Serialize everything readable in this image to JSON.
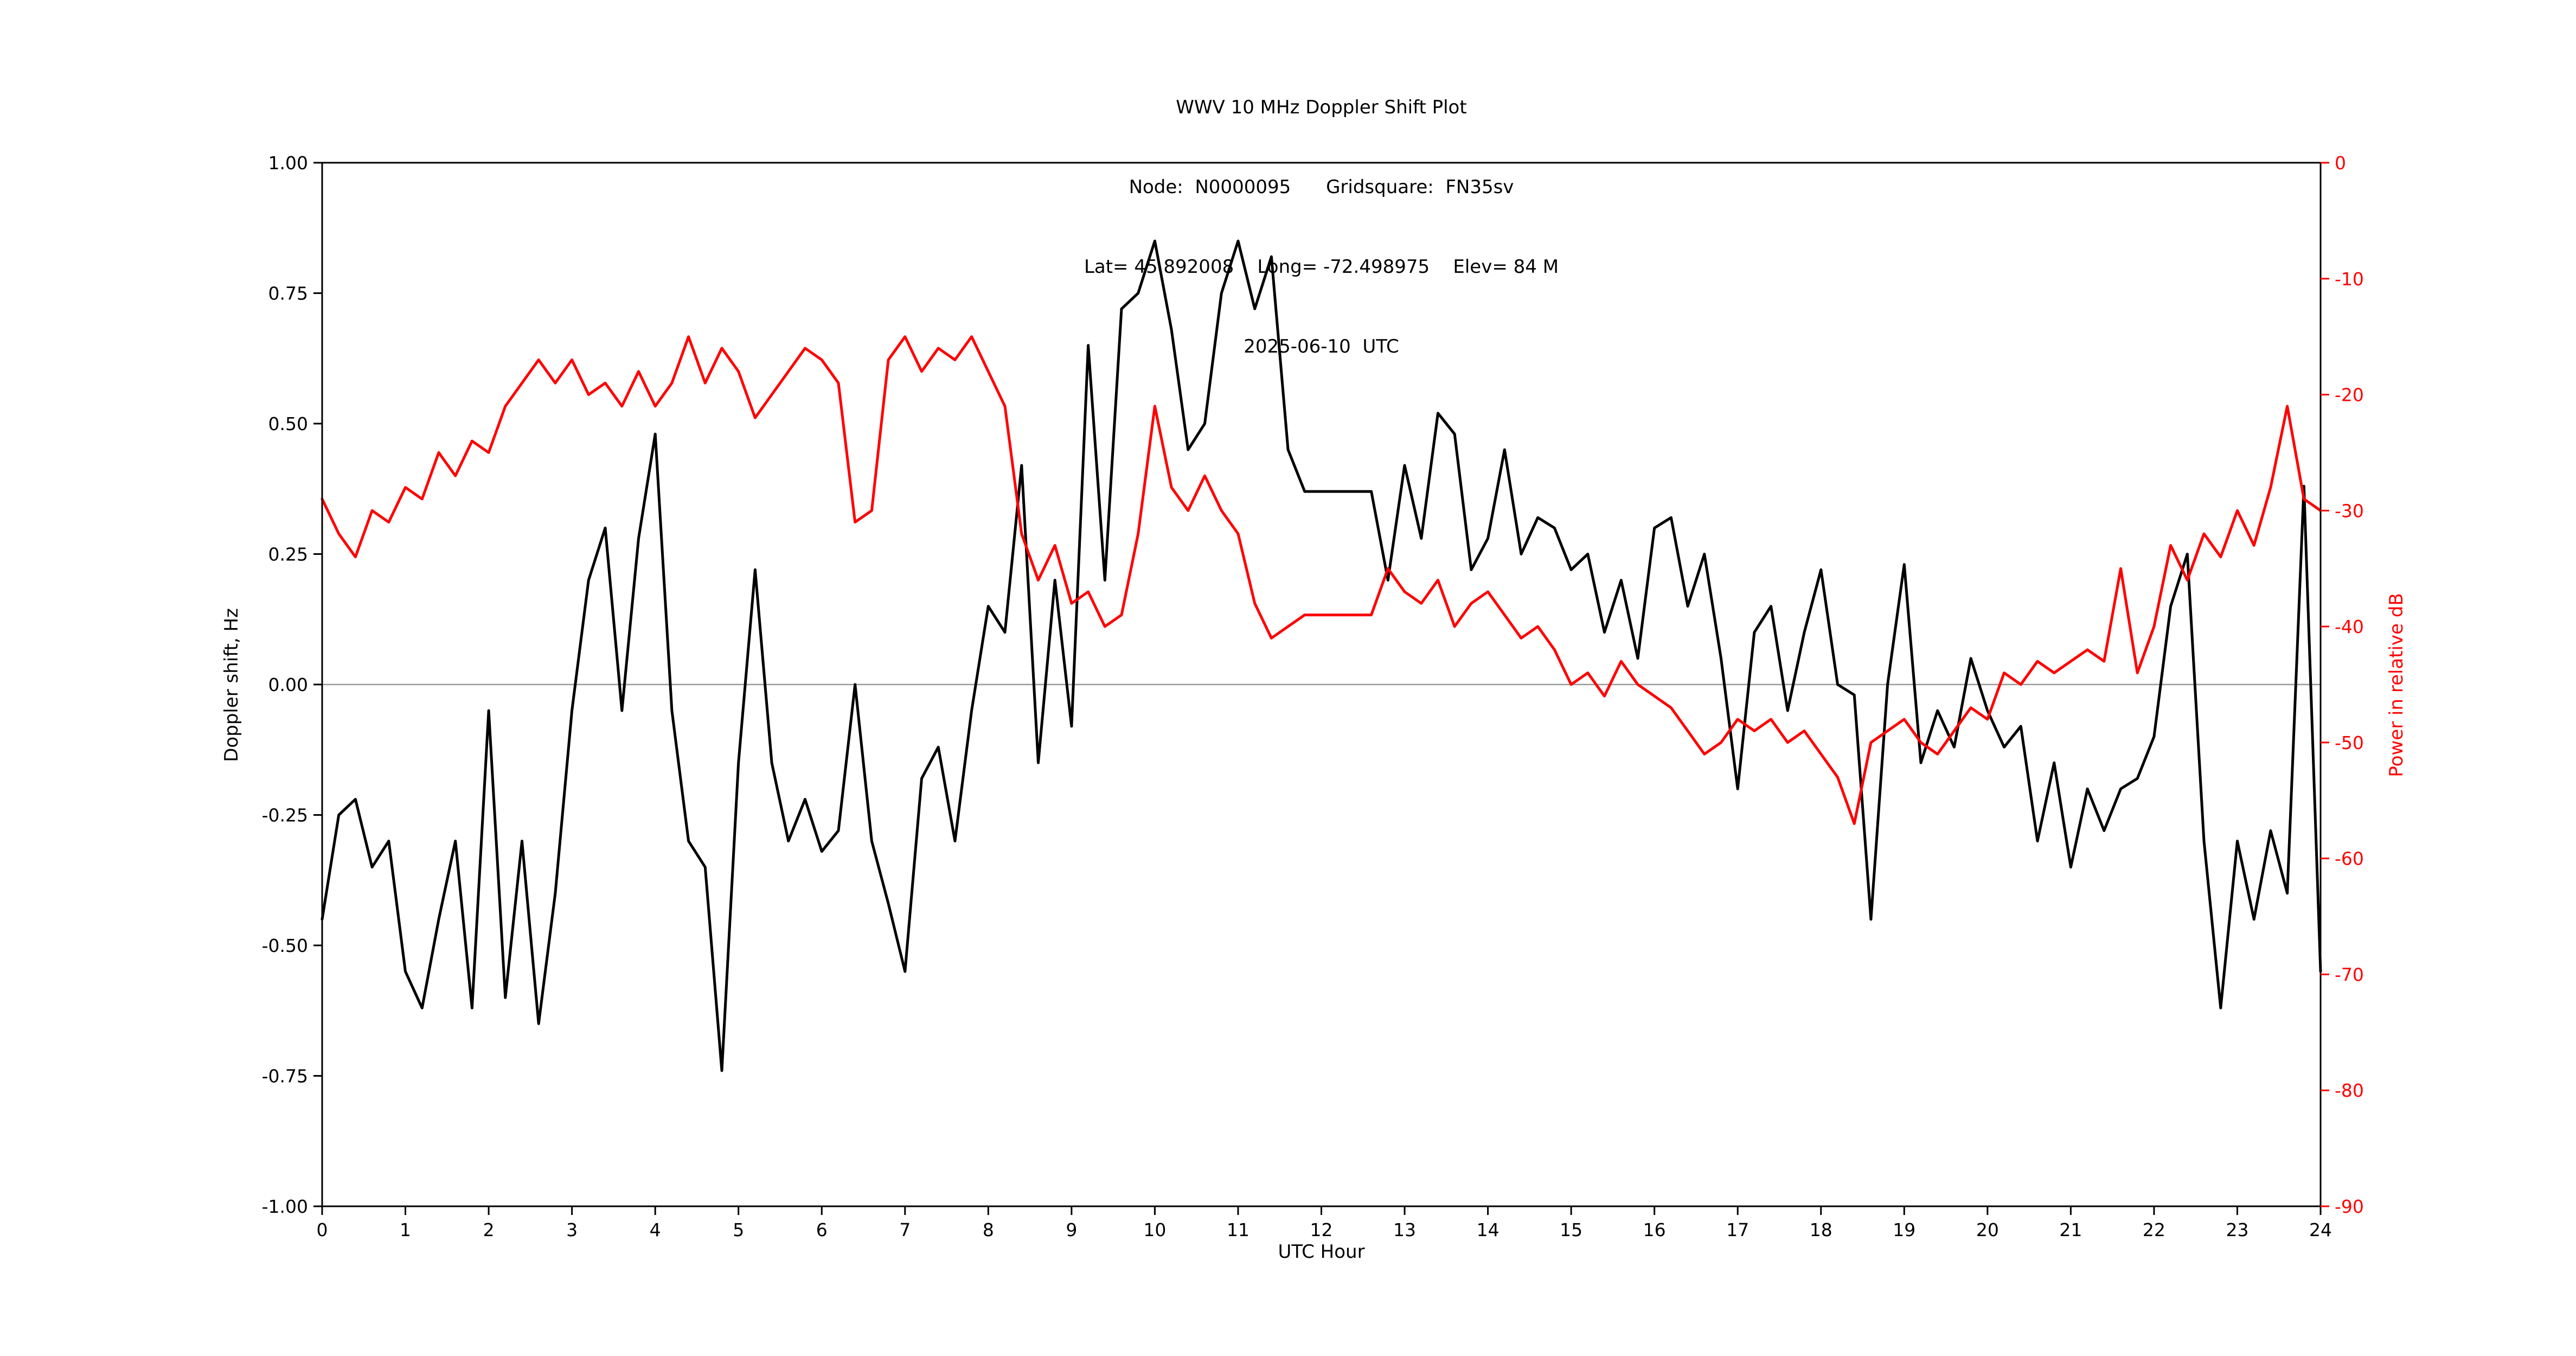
{
  "title": {
    "line1": "WWV 10 MHz Doppler Shift Plot",
    "line2": "Node:  N0000095      Gridsquare:  FN35sv",
    "line3": "Lat= 45.892008    Long= -72.498975    Elev= 84 M",
    "line4": "2025-06-10  UTC"
  },
  "axes": {
    "xlabel": "UTC Hour",
    "ylabel_left": "Doppler shift, Hz",
    "ylabel_right": "Power in relative dB",
    "x_tick_labels": [
      "0",
      "1",
      "2",
      "3",
      "4",
      "5",
      "6",
      "7",
      "8",
      "9",
      "10",
      "11",
      "12",
      "13",
      "14",
      "15",
      "16",
      "17",
      "18",
      "19",
      "20",
      "21",
      "22",
      "23",
      "24"
    ],
    "x_tick_values": [
      0,
      1,
      2,
      3,
      4,
      5,
      6,
      7,
      8,
      9,
      10,
      11,
      12,
      13,
      14,
      15,
      16,
      17,
      18,
      19,
      20,
      21,
      22,
      23,
      24
    ],
    "y_left_tick_labels": [
      "1.00",
      "0.75",
      "0.50",
      "0.25",
      "0.00",
      "-0.25",
      "-0.50",
      "-0.75",
      "-1.00"
    ],
    "y_left_tick_values": [
      1,
      0.75,
      0.5,
      0.25,
      0,
      -0.25,
      -0.5,
      -0.75,
      -1
    ],
    "y_right_tick_labels": [
      "0",
      "-10",
      "-20",
      "-30",
      "-40",
      "-50",
      "-60",
      "-70",
      "-80",
      "-90"
    ],
    "y_right_tick_values": [
      0,
      -10,
      -20,
      -30,
      -40,
      -50,
      -60,
      -70,
      -80,
      -90
    ]
  },
  "colors": {
    "doppler": "#000000",
    "power": "#ff0000",
    "zero_line": "#9a9a9a",
    "spine": "#000000"
  },
  "chart_data": {
    "type": "line",
    "title": "WWV 10 MHz Doppler Shift Plot",
    "xlabel": "UTC Hour",
    "ylabel_left": "Doppler shift, Hz",
    "ylabel_right": "Power in relative dB",
    "xlim": [
      0,
      24
    ],
    "ylim_left": [
      -1,
      1
    ],
    "ylim_right": [
      -90,
      0
    ],
    "grid": false,
    "legend": "none",
    "x": [
      0,
      0.2,
      0.4,
      0.6,
      0.8,
      1,
      1.2,
      1.4,
      1.6,
      1.8,
      2,
      2.2,
      2.4,
      2.6,
      2.8,
      3,
      3.2,
      3.4,
      3.6,
      3.8,
      4,
      4.2,
      4.4,
      4.6,
      4.8,
      5,
      5.2,
      5.4,
      5.6,
      5.8,
      6,
      6.2,
      6.4,
      6.6,
      6.8,
      7,
      7.2,
      7.4,
      7.6,
      7.8,
      8,
      8.2,
      8.4,
      8.6,
      8.8,
      9,
      9.2,
      9.4,
      9.6,
      9.8,
      10,
      10.2,
      10.4,
      10.6,
      10.8,
      11,
      11.2,
      11.4,
      11.6,
      11.8,
      12,
      12.2,
      12.4,
      12.6,
      12.8,
      13,
      13.2,
      13.4,
      13.6,
      13.8,
      14,
      14.2,
      14.4,
      14.6,
      14.8,
      15,
      15.2,
      15.4,
      15.6,
      15.8,
      16,
      16.2,
      16.4,
      16.6,
      16.8,
      17,
      17.2,
      17.4,
      17.6,
      17.8,
      18,
      18.2,
      18.4,
      18.6,
      18.8,
      19,
      19.2,
      19.4,
      19.6,
      19.8,
      20,
      20.2,
      20.4,
      20.6,
      20.8,
      21,
      21.2,
      21.4,
      21.6,
      21.8,
      22,
      22.2,
      22.4,
      22.6,
      22.8,
      23,
      23.2,
      23.4,
      23.6,
      23.8,
      24
    ],
    "series": [
      {
        "name": "Doppler shift, Hz",
        "axis": "left",
        "color": "#000000",
        "values": [
          -0.45,
          -0.25,
          -0.22,
          -0.35,
          -0.3,
          -0.55,
          -0.62,
          -0.45,
          -0.3,
          -0.62,
          -0.05,
          -0.6,
          -0.3,
          -0.65,
          -0.4,
          -0.05,
          0.2,
          0.3,
          -0.05,
          0.28,
          0.48,
          -0.05,
          -0.3,
          -0.35,
          -0.74,
          -0.15,
          0.22,
          -0.15,
          -0.3,
          -0.22,
          -0.32,
          -0.28,
          0,
          -0.3,
          -0.42,
          -0.55,
          -0.18,
          -0.12,
          -0.3,
          -0.05,
          0.15,
          0.1,
          0.42,
          -0.15,
          0.2,
          -0.08,
          0.65,
          0.2,
          0.72,
          0.75,
          0.85,
          0.68,
          0.45,
          0.5,
          0.75,
          0.85,
          0.72,
          0.82,
          0.45,
          0.37,
          0.37,
          0.37,
          0.37,
          0.37,
          0.2,
          0.42,
          0.28,
          0.52,
          0.48,
          0.22,
          0.28,
          0.45,
          0.25,
          0.32,
          0.3,
          0.22,
          0.25,
          0.1,
          0.2,
          0.05,
          0.3,
          0.32,
          0.15,
          0.25,
          0.05,
          -0.2,
          0.1,
          0.15,
          -0.05,
          0.1,
          0.22,
          0,
          -0.02,
          -0.45,
          0,
          0.23,
          -0.15,
          -0.05,
          -0.12,
          0.05,
          -0.05,
          -0.12,
          -0.08,
          -0.3,
          -0.15,
          -0.35,
          -0.2,
          -0.28,
          -0.2,
          -0.18,
          -0.1,
          0.15,
          0.25,
          -0.3,
          -0.62,
          -0.3,
          -0.45,
          -0.28,
          -0.4,
          0.38,
          -0.55
        ]
      },
      {
        "name": "Power in relative dB",
        "axis": "right",
        "color": "#ff0000",
        "values": [
          -29,
          -32,
          -34,
          -30,
          -31,
          -28,
          -29,
          -25,
          -27,
          -24,
          -25,
          -21,
          -19,
          -17,
          -19,
          -17,
          -20,
          -19,
          -21,
          -18,
          -21,
          -19,
          -15,
          -19,
          -16,
          -18,
          -22,
          -20,
          -18,
          -16,
          -17,
          -19,
          -31,
          -30,
          -17,
          -15,
          -18,
          -16,
          -17,
          -15,
          -18,
          -21,
          -32,
          -36,
          -33,
          -38,
          -37,
          -40,
          -39,
          -32,
          -21,
          -28,
          -30,
          -27,
          -30,
          -32,
          -38,
          -41,
          -40,
          -39,
          -39,
          -39,
          -39,
          -39,
          -35,
          -37,
          -38,
          -36,
          -40,
          -38,
          -37,
          -39,
          -41,
          -40,
          -42,
          -45,
          -44,
          -46,
          -43,
          -45,
          -46,
          -47,
          -49,
          -51,
          -50,
          -48,
          -49,
          -48,
          -50,
          -49,
          -51,
          -53,
          -57,
          -50,
          -49,
          -48,
          -50,
          -51,
          -49,
          -47,
          -48,
          -44,
          -45,
          -43,
          -44,
          -43,
          -42,
          -43,
          -35,
          -44,
          -40,
          -33,
          -36,
          -32,
          -34,
          -30,
          -33,
          -28,
          -21,
          -29,
          -30
        ]
      }
    ]
  }
}
